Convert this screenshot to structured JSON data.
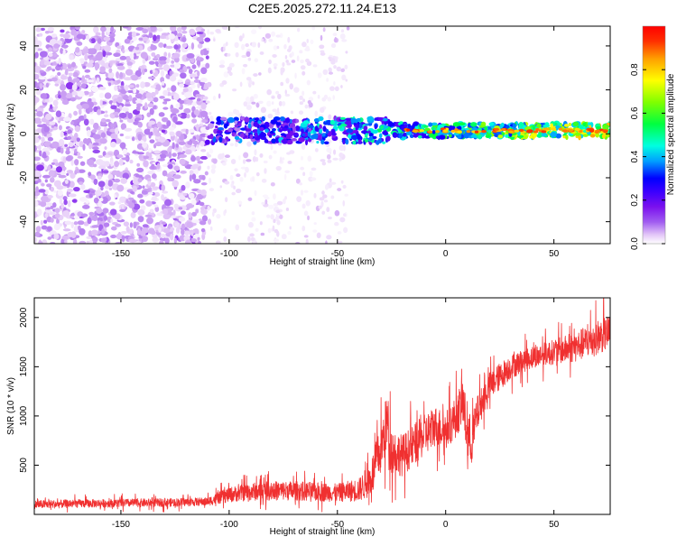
{
  "page_title": "C2E5.2025.272.11.24.E13",
  "colors": {
    "snr_line": "#f03030",
    "axis": "#000000",
    "colormap": [
      "#ffffff",
      "#e4c8f8",
      "#c79af2",
      "#a05cf0",
      "#7a10ee",
      "#3a00ff",
      "#0000ff",
      "#00a0ff",
      "#00ffe0",
      "#00ff40",
      "#80ff00",
      "#ffff00",
      "#ffa000",
      "#ff3000",
      "#ff0000"
    ]
  },
  "chart_data": [
    {
      "id": "spectrogram",
      "type": "heatmap",
      "title": "C2E5.2025.272.11.24.E13",
      "xlabel": "Height of straight line (km)",
      "ylabel": "Frequency (Hz)",
      "xlim": [
        -190,
        76
      ],
      "ylim": [
        -50,
        49
      ],
      "xticks": [
        -150,
        -100,
        -50,
        0,
        50
      ],
      "xtick_labels": [
        "-150",
        "-100",
        "-50",
        "0",
        "50"
      ],
      "yticks": [
        -40,
        -20,
        0,
        20,
        40
      ],
      "ytick_labels": [
        "-40",
        "-20",
        "0",
        "20",
        "40"
      ],
      "colorbar": {
        "label": "Normalized spectral amplitude",
        "range": [
          0,
          1
        ],
        "ticks": [
          0,
          0.2,
          0.4,
          0.6,
          0.8
        ],
        "tick_labels": [
          "0.0",
          "0.2",
          "0.4",
          "0.6",
          "0.8"
        ]
      },
      "regions": [
        {
          "name": "noise",
          "x_range": [
            -190,
            -110
          ],
          "freq_range": [
            -50,
            49
          ],
          "amplitude": 0.1
        },
        {
          "name": "sparse noise",
          "x_range": [
            -110,
            -45
          ],
          "freq_range": [
            -50,
            49
          ],
          "amplitude": 0.03
        },
        {
          "name": "signal band",
          "x_range": [
            -110,
            76
          ],
          "freq_center": 1.5,
          "freq_halfwidth": 4,
          "amplitude_start": 0.3,
          "amplitude_end": 0.7
        },
        {
          "name": "strong peaks",
          "x_range": [
            -20,
            76
          ],
          "freq_center": 1.5,
          "amplitude": 0.95
        }
      ]
    },
    {
      "id": "snr",
      "type": "line",
      "xlabel": "Height of straight line (km)",
      "ylabel": "SNR (10 * v/v)",
      "xlim": [
        -190,
        76
      ],
      "ylim": [
        0,
        2200
      ],
      "xticks": [
        -150,
        -100,
        -50,
        0,
        50
      ],
      "xtick_labels": [
        "-150",
        "-100",
        "-50",
        "0",
        "50"
      ],
      "yticks": [
        500,
        1000,
        1500,
        2000
      ],
      "ytick_labels": [
        "500",
        "1000",
        "1500",
        "2000"
      ],
      "series": [
        {
          "name": "SNR",
          "x": [
            -190,
            -170,
            -150,
            -130,
            -110,
            -100,
            -90,
            -80,
            -70,
            -60,
            -50,
            -40,
            -35,
            -30,
            -27,
            -25,
            -20,
            -15,
            -10,
            -5,
            0,
            5,
            8,
            10,
            12,
            15,
            20,
            25,
            30,
            40,
            50,
            60,
            70,
            76
          ],
          "values": [
            100,
            110,
            115,
            120,
            130,
            200,
            230,
            240,
            240,
            230,
            220,
            250,
            350,
            650,
            950,
            650,
            600,
            700,
            800,
            900,
            850,
            1000,
            1150,
            800,
            750,
            1050,
            1300,
            1400,
            1500,
            1600,
            1650,
            1700,
            1800,
            1850
          ],
          "noise_amplitude": [
            60,
            60,
            60,
            60,
            60,
            110,
            130,
            140,
            140,
            140,
            130,
            170,
            250,
            350,
            450,
            350,
            300,
            300,
            300,
            300,
            280,
            300,
            350,
            400,
            350,
            250,
            200,
            200,
            180,
            160,
            180,
            220,
            250,
            250
          ]
        }
      ]
    }
  ]
}
